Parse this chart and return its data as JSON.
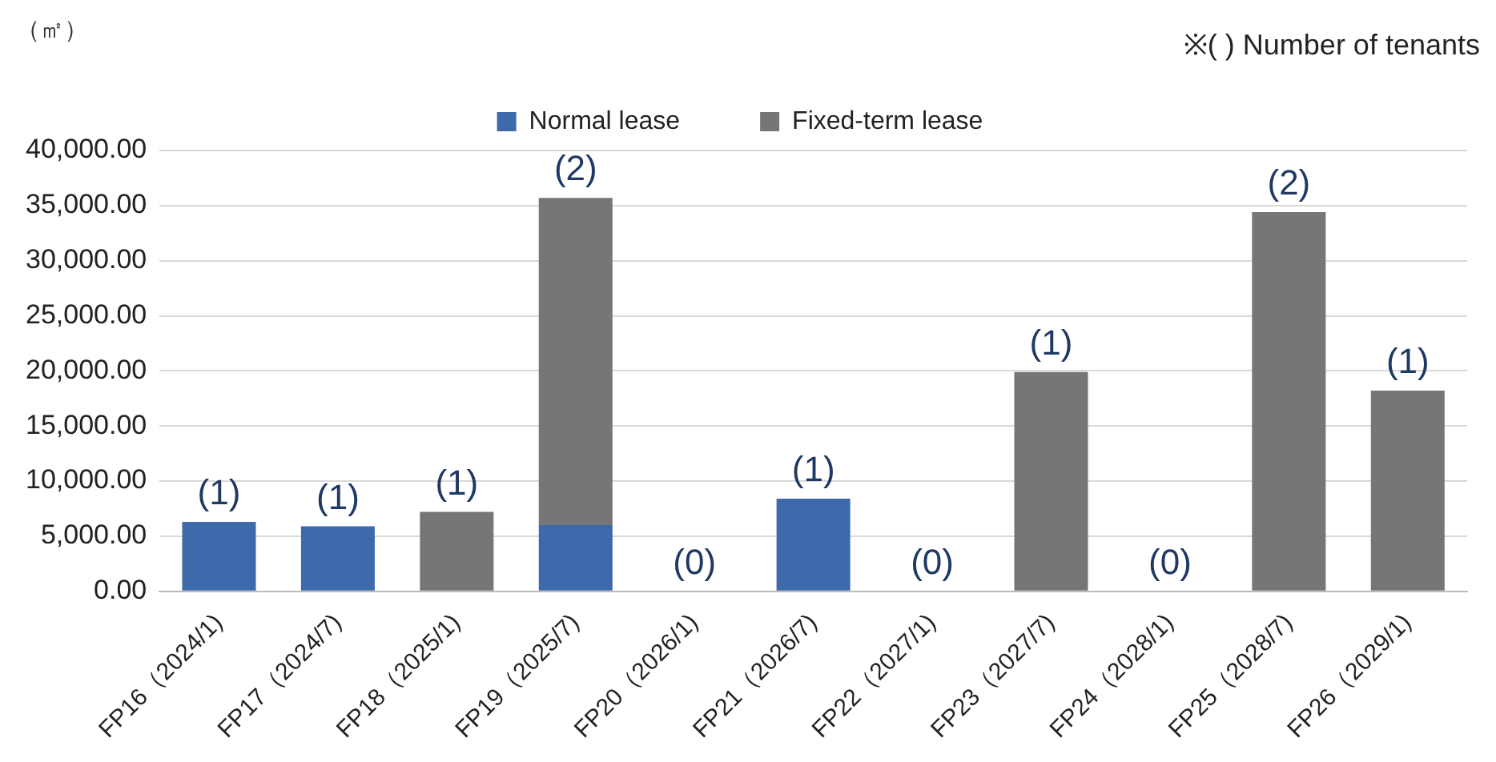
{
  "chart_data": {
    "type": "bar",
    "stacked": true,
    "ylabel": "（㎡）",
    "categories": [
      "FP16（2024/1)",
      "FP17（2024/7)",
      "FP18（2025/1)",
      "FP19（2025/7)",
      "FP20（2026/1)",
      "FP21（2026/7)",
      "FP22（2027/1)",
      "FP23（2027/7)",
      "FP24（2028/1)",
      "FP25（2028/7)",
      "FP26（2029/1)"
    ],
    "series": [
      {
        "name": "Normal lease",
        "color": "#3e69aa",
        "values": [
          6300,
          5900,
          null,
          6000,
          0,
          8400,
          0,
          null,
          0,
          null,
          null
        ]
      },
      {
        "name": "Fixed-term lease",
        "color": "#767676",
        "values": [
          null,
          null,
          7200,
          29700,
          null,
          null,
          null,
          19900,
          null,
          34400,
          18200
        ]
      }
    ],
    "ylim": [
      0,
      40000
    ],
    "yticks": [
      {
        "value": 0,
        "label": "0.00"
      },
      {
        "value": 5000,
        "label": "5,000.00"
      },
      {
        "value": 10000,
        "label": "10,000.00"
      },
      {
        "value": 15000,
        "label": "15,000.00"
      },
      {
        "value": 20000,
        "label": "20,000.00"
      },
      {
        "value": 25000,
        "label": "25,000.00"
      },
      {
        "value": 30000,
        "label": "30,000.00"
      },
      {
        "value": 35000,
        "label": "35,000.00"
      },
      {
        "value": 40000,
        "label": "40,000.00"
      }
    ],
    "grid": "y",
    "legend": "top",
    "annotations": [
      "※( ) Number of tenants",
      {
        "text": "(1)",
        "x": "FP16（2024/1)",
        "y": 6300
      },
      {
        "text": "(1)",
        "x": "FP17（2024/7)",
        "y": 5900
      },
      {
        "text": "(1)",
        "x": "FP18（2025/1)",
        "y": 7200
      },
      {
        "text": "(2)",
        "x": "FP19（2025/7)",
        "y": 35700
      },
      {
        "text": "(0)",
        "x": "FP20（2026/1)",
        "y": 0
      },
      {
        "text": "(1)",
        "x": "FP21（2026/7)",
        "y": 8400
      },
      {
        "text": "(0)",
        "x": "FP22（2027/1)",
        "y": 0
      },
      {
        "text": "(1)",
        "x": "FP23（2027/7)",
        "y": 19900
      },
      {
        "text": "(0)",
        "x": "FP24（2028/1)",
        "y": 0
      },
      {
        "text": "(2)",
        "x": "FP25（2028/7)",
        "y": 34400
      },
      {
        "text": "(1)",
        "x": "FP26（2029/1)",
        "y": 18200
      }
    ]
  }
}
